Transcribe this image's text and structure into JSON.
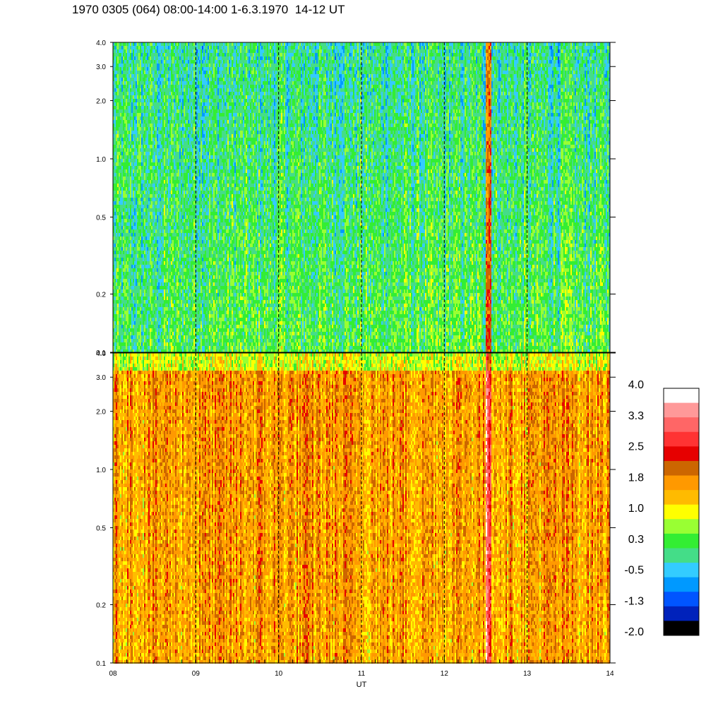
{
  "title": "1970 0305 (064) 08:00-14:00 1-6.3.1970  14-12 UT",
  "chart_data": [
    {
      "type": "heatmap",
      "panel": "upper",
      "x_range": [
        "08",
        "14"
      ],
      "y_scale": "log",
      "ylim": [
        0.1,
        4.0
      ],
      "y_ticks": [
        "0.1",
        "0.2",
        "0.5",
        "1.0",
        "2.0",
        "3.0",
        "4.0"
      ],
      "base_level": 0.3,
      "notes": "mostly green/light-green with cyan streaks near top; red-orange streak near 12:30"
    },
    {
      "type": "heatmap",
      "panel": "lower",
      "x_range": [
        "08",
        "14"
      ],
      "y_scale": "log",
      "ylim": [
        0.1,
        4.0
      ],
      "y_ticks": [
        "0.1",
        "0.2",
        "0.5",
        "1.0",
        "2.0",
        "3.0",
        "4.0"
      ],
      "base_level": 1.6,
      "notes": "mostly orange/yellow with brown and red streaks; strong red streak near 12:30"
    }
  ],
  "x_axis": {
    "label": "UT",
    "ticks": [
      "08",
      "09",
      "10",
      "11",
      "12",
      "13",
      "14"
    ]
  },
  "colorbar": {
    "labels": [
      "4.0",
      "3.3",
      "2.5",
      "1.8",
      "1.0",
      "0.3",
      "-0.5",
      "-1.3",
      "-2.0"
    ],
    "colors": [
      "#ffffff",
      "#ff9999",
      "#ff6666",
      "#ff3333",
      "#e60000",
      "#cc6600",
      "#ff9900",
      "#ffbb00",
      "#ffff00",
      "#99ff33",
      "#33ee33",
      "#44dd88",
      "#33ccff",
      "#0099ff",
      "#0055ff",
      "#0022bb",
      "#000000"
    ]
  }
}
